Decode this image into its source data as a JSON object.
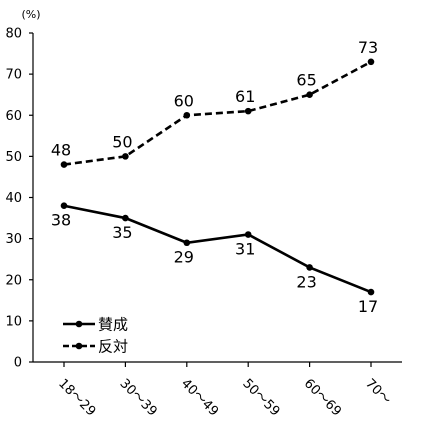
{
  "chart_data": {
    "type": "line",
    "y_unit": "(%)",
    "ylim": [
      0,
      80
    ],
    "ytick_step": 10,
    "grid": false,
    "legend_position": "bottom-left",
    "categories": [
      "18～29",
      "30～39",
      "40～49",
      "50～59",
      "60～69",
      "70～"
    ],
    "series": [
      {
        "name": "賛成",
        "values": [
          38,
          35,
          29,
          31,
          23,
          17
        ],
        "style": "solid",
        "label_position": "below",
        "color": "#000000"
      },
      {
        "name": "反対",
        "values": [
          48,
          50,
          60,
          61,
          65,
          73
        ],
        "style": "dashed",
        "label_position": "above",
        "color": "#000000"
      }
    ]
  }
}
